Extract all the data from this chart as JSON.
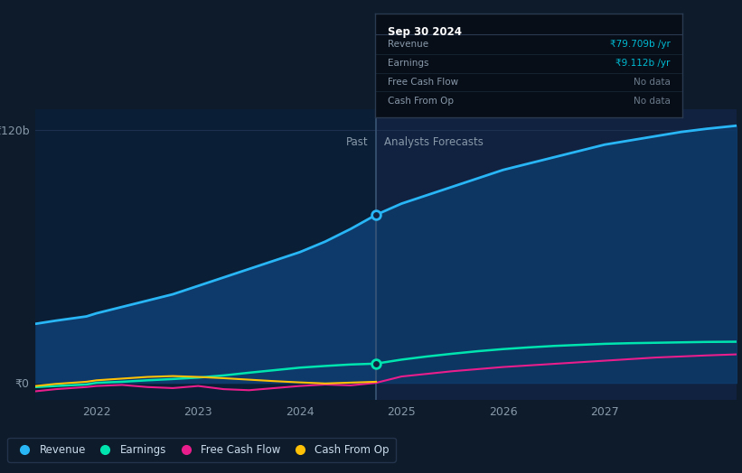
{
  "bg_color": "#0d1b2a",
  "plot_bg_color": "#112240",
  "past_bg_color": "#0d1f38",
  "forecast_bg_color": "#112240",
  "grid_color": "#1e3050",
  "ylabel_120b": "₹120b",
  "ylabel_0": "₹0",
  "x_min": 2021.4,
  "x_max": 2028.3,
  "y_min": -8,
  "y_max": 130,
  "divider_x": 2024.75,
  "past_label": "Past",
  "forecast_label": "Analysts Forecasts",
  "tooltip": {
    "title": "Sep 30 2024",
    "rows": [
      {
        "label": "Revenue",
        "value": "₹79.709b /yr",
        "value_color": "#00bcd4"
      },
      {
        "label": "Earnings",
        "value": "₹9.112b /yr",
        "value_color": "#00bcd4"
      },
      {
        "label": "Free Cash Flow",
        "value": "No data",
        "value_color": "#6a7a8a"
      },
      {
        "label": "Cash From Op",
        "value": "No data",
        "value_color": "#6a7a8a"
      }
    ]
  },
  "revenue": {
    "color": "#29b6f6",
    "fill_past_color": "#0d3a6a",
    "fill_forecast_color": "#0d3060",
    "label": "Revenue",
    "past_x": [
      2021.4,
      2021.6,
      2021.9,
      2022.0,
      2022.25,
      2022.5,
      2022.75,
      2023.0,
      2023.25,
      2023.5,
      2023.75,
      2024.0,
      2024.25,
      2024.5,
      2024.75
    ],
    "past_y": [
      28,
      29.5,
      31.5,
      33,
      36,
      39,
      42,
      46,
      50,
      54,
      58,
      62,
      67,
      73,
      79.7
    ],
    "forecast_x": [
      2024.75,
      2025.0,
      2025.25,
      2025.5,
      2025.75,
      2026.0,
      2026.25,
      2026.5,
      2026.75,
      2027.0,
      2027.25,
      2027.5,
      2027.75,
      2028.0,
      2028.3
    ],
    "forecast_y": [
      79.7,
      85,
      89,
      93,
      97,
      101,
      104,
      107,
      110,
      113,
      115,
      117,
      119,
      120.5,
      122
    ]
  },
  "earnings": {
    "color": "#00e5b0",
    "label": "Earnings",
    "past_x": [
      2021.4,
      2021.6,
      2021.9,
      2022.0,
      2022.25,
      2022.5,
      2022.75,
      2023.0,
      2023.25,
      2023.5,
      2023.75,
      2024.0,
      2024.25,
      2024.5,
      2024.75
    ],
    "past_y": [
      -2,
      -1.5,
      -0.8,
      0.0,
      0.5,
      1.2,
      1.8,
      2.5,
      3.5,
      4.8,
      6.0,
      7.2,
      8.0,
      8.7,
      9.112
    ],
    "forecast_x": [
      2024.75,
      2025.0,
      2025.25,
      2025.5,
      2025.75,
      2026.0,
      2026.25,
      2026.5,
      2026.75,
      2027.0,
      2027.25,
      2027.5,
      2027.75,
      2028.0,
      2028.3
    ],
    "forecast_y": [
      9.112,
      11.0,
      12.5,
      13.8,
      15.0,
      16.0,
      16.8,
      17.5,
      18.0,
      18.5,
      18.8,
      19.0,
      19.2,
      19.4,
      19.5
    ]
  },
  "free_cash_flow": {
    "color": "#e91e8c",
    "label": "Free Cash Flow",
    "past_x": [
      2021.4,
      2021.6,
      2021.9,
      2022.0,
      2022.25,
      2022.5,
      2022.75,
      2023.0,
      2023.25,
      2023.5,
      2023.75,
      2024.0,
      2024.25,
      2024.5,
      2024.75
    ],
    "past_y": [
      -4,
      -3,
      -2,
      -1.5,
      -1.0,
      -2.0,
      -2.5,
      -1.5,
      -3.0,
      -3.5,
      -2.5,
      -1.5,
      -0.8,
      -1.2,
      0.0
    ],
    "forecast_x": [
      2024.75,
      2025.0,
      2025.5,
      2026.0,
      2026.5,
      2027.0,
      2027.5,
      2028.0,
      2028.3
    ],
    "forecast_y": [
      0.0,
      3.0,
      5.5,
      7.5,
      9.0,
      10.5,
      12.0,
      13.0,
      13.5
    ]
  },
  "cash_from_op": {
    "color": "#ffc107",
    "label": "Cash From Op",
    "past_x": [
      2021.4,
      2021.6,
      2021.9,
      2022.0,
      2022.25,
      2022.5,
      2022.75,
      2023.0,
      2023.25,
      2023.5,
      2023.75,
      2024.0,
      2024.25,
      2024.5,
      2024.75
    ],
    "past_y": [
      -1.5,
      -0.5,
      0.5,
      1.2,
      2.0,
      2.8,
      3.2,
      2.8,
      2.2,
      1.5,
      0.8,
      0.2,
      -0.3,
      0.1,
      0.5
    ]
  },
  "marker_x": 2024.75,
  "marker_revenue_y": 79.7,
  "marker_earnings_y": 9.112,
  "xticks": [
    2022,
    2023,
    2024,
    2025,
    2026,
    2027
  ],
  "yticks": [
    0,
    120
  ]
}
